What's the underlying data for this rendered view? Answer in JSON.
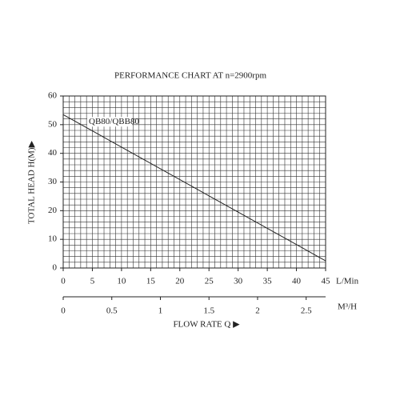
{
  "chart_data": {
    "type": "line",
    "title": "PERFORMANCE CHART AT n=2900rpm",
    "y_label": "TOTAL HEAD H(M)▶",
    "x_unit": "L/Min",
    "x_label": "FLOW RATE Q ▶",
    "x": [
      0,
      45
    ],
    "series": [
      {
        "name": "QB80/QBB80",
        "color": "#222222",
        "values": [
          53.5,
          2.5
        ]
      }
    ],
    "xlim": [
      0,
      45
    ],
    "xticks": [
      0,
      5,
      10,
      15,
      20,
      25,
      30,
      35,
      40,
      45
    ],
    "ylim": [
      0,
      60
    ],
    "yticks": [
      0,
      10,
      20,
      30,
      40,
      50,
      60
    ],
    "x2lim": [
      0,
      2.7
    ],
    "x2ticks": [
      0,
      0.5,
      1,
      1.5,
      2,
      2.5
    ],
    "x2_unit": "M³/H",
    "grid": true,
    "minor_grid_step": {
      "x": 1,
      "y": 2
    }
  }
}
